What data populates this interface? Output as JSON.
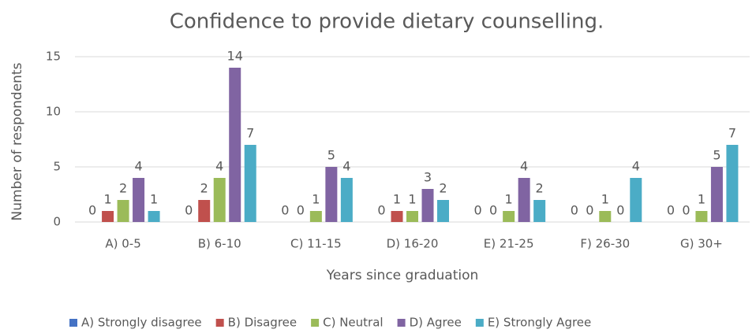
{
  "chart_data": {
    "type": "bar",
    "title": "Confidence to provide dietary counselling.",
    "x_label": "Years since graduation",
    "y_label": "Number of respondents",
    "categories": [
      "A) 0-5",
      "B) 6-10",
      "C) 11-15",
      "D) 16-20",
      "E) 21-25",
      "F) 26-30",
      "G) 30+"
    ],
    "series": [
      {
        "name": "A) Strongly disagree",
        "color": "#4472c4",
        "values": [
          0,
          0,
          0,
          0,
          0,
          0,
          0
        ]
      },
      {
        "name": "B) Disagree",
        "color": "#c0504d",
        "values": [
          1,
          2,
          0,
          1,
          0,
          0,
          0
        ]
      },
      {
        "name": "C) Neutral",
        "color": "#9bbb59",
        "values": [
          2,
          4,
          1,
          1,
          1,
          1,
          1
        ]
      },
      {
        "name": "D) Agree",
        "color": "#8064a2",
        "values": [
          4,
          14,
          5,
          3,
          4,
          0,
          5
        ]
      },
      {
        "name": "E) Strongly Agree",
        "color": "#4bacc6",
        "values": [
          1,
          7,
          4,
          2,
          2,
          4,
          7
        ]
      }
    ],
    "ylim": [
      0,
      15
    ],
    "yticks": [
      0,
      5,
      10,
      15
    ],
    "grid": true,
    "legend": "bottom"
  }
}
